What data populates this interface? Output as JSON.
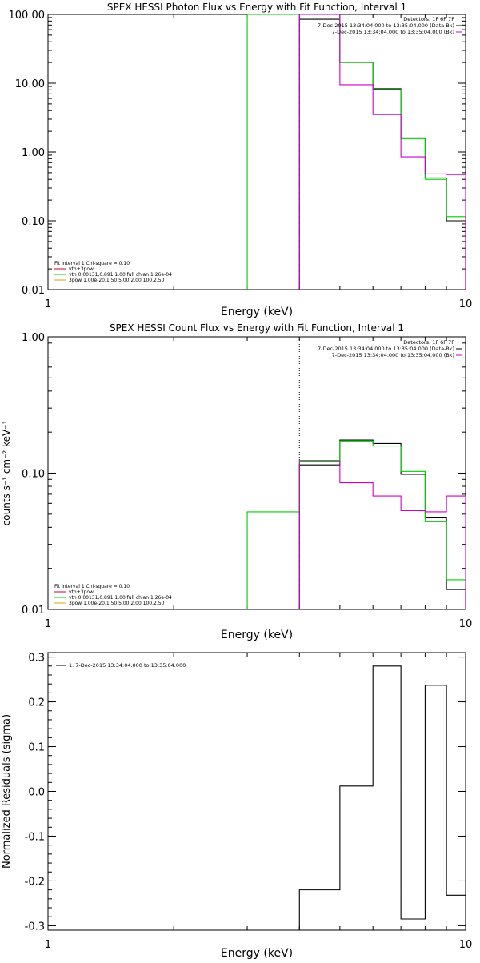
{
  "colors": {
    "background": "#ffffff",
    "axes": "#000000",
    "data": "#000000",
    "model": "#00cc00",
    "background_model": "#cc00cc",
    "component_orange": "#ccaa00"
  },
  "chart_data": [
    {
      "type": "line",
      "step": true,
      "title": "SPEX HESSI Photon Flux vs Energy with Fit Function, Interval 1",
      "xlabel": "Energy (keV)",
      "ylabel": "",
      "xscale": "log",
      "yscale": "log",
      "xlim": [
        1,
        10
      ],
      "ylim": [
        0.01,
        100
      ],
      "x_ticks": [
        "1",
        "10"
      ],
      "y_ticks": [
        "0.01",
        "0.10",
        "1.00",
        "10.00",
        "100.00"
      ],
      "legend_top": [
        "Detectors: 1F 6F 7F",
        "7-Dec-2015 13:34:04.000 to 13:35:04.000 (Data-Bk)",
        "7-Dec-2015 13:34:04.000 to 13:35:04.000 (Bk)"
      ],
      "legend_bottom": [
        "Fit Interval 1   Chi-square = 0.10",
        "vth+3pow",
        "vth 0.00131,0.891,1.00  full chian 1.26e-04",
        "3pow 1.00e-20,1.50,5.00,2.00,100,2.50"
      ],
      "series": [
        {
          "color": "black",
          "edges": [
            4,
            5,
            6,
            7,
            8,
            9,
            10
          ],
          "values": [
            85,
            20,
            8.3,
            1.6,
            0.42,
            0.1
          ]
        },
        {
          "color": "green",
          "edges": [
            3,
            4,
            5,
            6,
            7,
            8,
            9,
            10
          ],
          "values": [
            100,
            100,
            20,
            8.1,
            1.55,
            0.4,
            0.115
          ]
        },
        {
          "color": "magenta",
          "edges": [
            4,
            5,
            6,
            7,
            8,
            9,
            10
          ],
          "values": [
            100,
            9.5,
            3.5,
            0.85,
            0.48,
            0.47
          ]
        }
      ]
    },
    {
      "type": "line",
      "step": true,
      "title": "SPEX HESSI Count Flux vs Energy with Fit Function, Interval 1",
      "xlabel": "Energy (keV)",
      "ylabel": "counts s⁻¹ cm⁻² keV⁻¹",
      "xscale": "log",
      "yscale": "log",
      "xlim": [
        1,
        10
      ],
      "ylim": [
        0.01,
        1
      ],
      "x_ticks": [
        "1",
        "10"
      ],
      "y_ticks": [
        "0.01",
        "0.10",
        "1.00"
      ],
      "legend_top": [
        "Detectors: 1F 6F 7F",
        "7-Dec-2015 13:34:04.000 to 13:35:04.000 (Data-Bk)",
        "7-Dec-2015 13:34:04.000 to 13:35:04.000 (Bk)"
      ],
      "legend_bottom": [
        "Fit Interval 1   Chi-square = 0.10",
        "vth+3pow",
        "vth 0.00131,0.891,1.00  full chian 1.26e-04",
        "3pow 1.00e-20,1.50,5.00,2.00,100,2.50"
      ],
      "series": [
        {
          "color": "black",
          "edges": [
            4,
            5,
            6,
            7,
            8,
            9,
            10
          ],
          "values": [
            0.115,
            0.175,
            0.165,
            0.098,
            0.047,
            0.014
          ]
        },
        {
          "color": "green",
          "edges": [
            3,
            4,
            5,
            6,
            7,
            8,
            9,
            10
          ],
          "values": [
            0.052,
            0.124,
            0.172,
            0.158,
            0.103,
            0.044,
            0.0165
          ]
        },
        {
          "color": "magenta",
          "edges": [
            4,
            5,
            6,
            7,
            8,
            9,
            10
          ],
          "values": [
            0.122,
            0.085,
            0.068,
            0.053,
            0.052,
            0.068
          ]
        }
      ]
    },
    {
      "type": "line",
      "step": true,
      "title": "",
      "xlabel": "Energy (keV)",
      "ylabel": "Normalized Residuals (sigma)",
      "xscale": "log",
      "yscale": "linear",
      "xlim": [
        1,
        10
      ],
      "ylim": [
        -0.31,
        0.31
      ],
      "x_ticks": [
        "1",
        "10"
      ],
      "y_ticks": [
        "0.3",
        "0.2",
        "0.1",
        "0.0",
        "-0.1",
        "-0.2",
        "-0.3"
      ],
      "legend_top": [
        "1.  7-Dec-2015 13:34:04.000 to 13:35:04.000"
      ],
      "legend_bottom": [],
      "series": [
        {
          "color": "black",
          "edges": [
            4,
            5,
            6,
            7,
            8,
            9,
            10
          ],
          "values": [
            -0.22,
            0.012,
            0.28,
            -0.285,
            0.237,
            -0.232
          ]
        }
      ]
    }
  ]
}
